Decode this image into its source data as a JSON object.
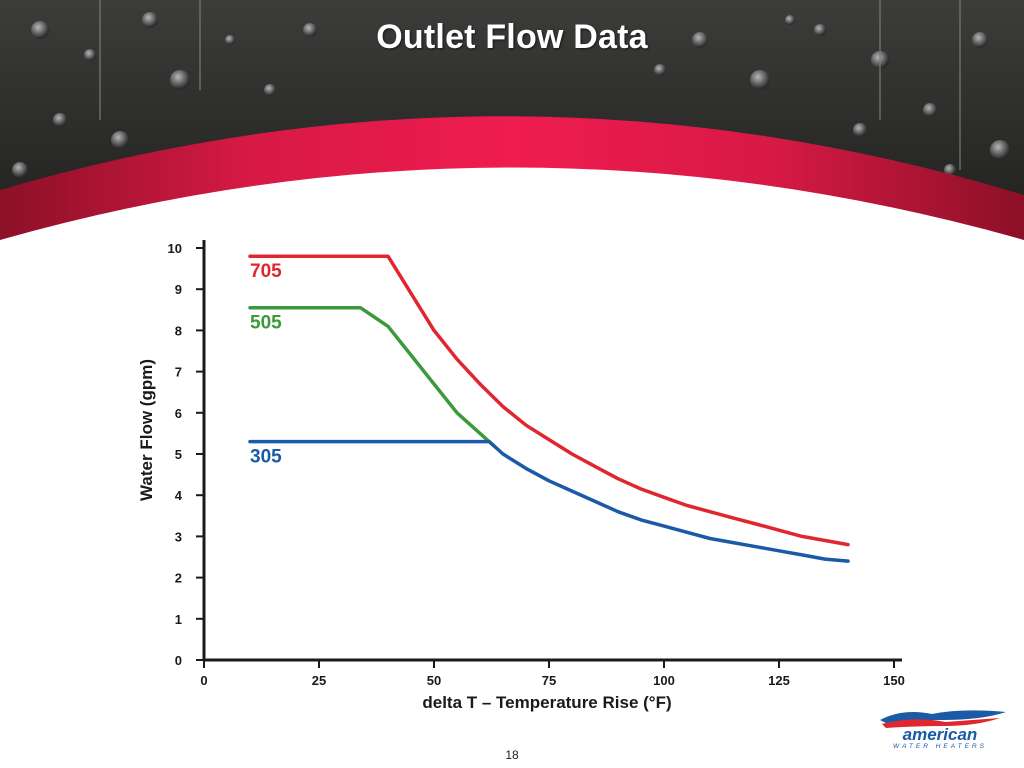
{
  "slide": {
    "title": "Outlet Flow Data",
    "page_number": "18",
    "logo": {
      "word": "american",
      "tagline": "WATER HEATERS"
    }
  },
  "colors": {
    "brand_red": "#e8174b",
    "dark_red": "#8c1026",
    "logo_blue": "#1b5aa6",
    "axis": "#1a1a1a"
  },
  "chart_data": {
    "type": "line",
    "xlabel": "delta T – Temperature Rise (°F)",
    "ylabel": "Water Flow (gpm)",
    "xlim": [
      0,
      150
    ],
    "ylim": [
      0,
      10
    ],
    "xticks": [
      0,
      25,
      50,
      75,
      100,
      125,
      150
    ],
    "yticks": [
      0,
      1,
      2,
      3,
      4,
      5,
      6,
      7,
      8,
      9,
      10
    ],
    "grid": false,
    "series": [
      {
        "name": "705",
        "color": "#e0262f",
        "x": [
          10,
          40,
          45,
          50,
          55,
          60,
          65,
          70,
          75,
          80,
          85,
          90,
          95,
          100,
          105,
          110,
          115,
          120,
          125,
          130,
          135,
          140
        ],
        "y": [
          9.8,
          9.8,
          8.9,
          8.0,
          7.3,
          6.7,
          6.15,
          5.7,
          5.35,
          5.0,
          4.7,
          4.4,
          4.15,
          3.95,
          3.75,
          3.6,
          3.45,
          3.3,
          3.15,
          3.0,
          2.9,
          2.8
        ]
      },
      {
        "name": "505",
        "color": "#3a9a3c",
        "x": [
          10,
          34,
          40,
          45,
          50,
          55,
          60,
          63
        ],
        "y": [
          8.55,
          8.55,
          8.1,
          7.4,
          6.7,
          6.0,
          5.5,
          5.2
        ]
      },
      {
        "name": "305",
        "color": "#1b5aa6",
        "x": [
          10,
          40,
          50,
          62,
          65,
          70,
          75,
          80,
          85,
          90,
          95,
          100,
          105,
          110,
          115,
          120,
          125,
          130,
          135,
          140
        ],
        "y": [
          5.3,
          5.3,
          5.3,
          5.3,
          5.0,
          4.65,
          4.35,
          4.1,
          3.85,
          3.6,
          3.4,
          3.25,
          3.1,
          2.95,
          2.85,
          2.75,
          2.65,
          2.55,
          2.45,
          2.4
        ]
      }
    ]
  }
}
